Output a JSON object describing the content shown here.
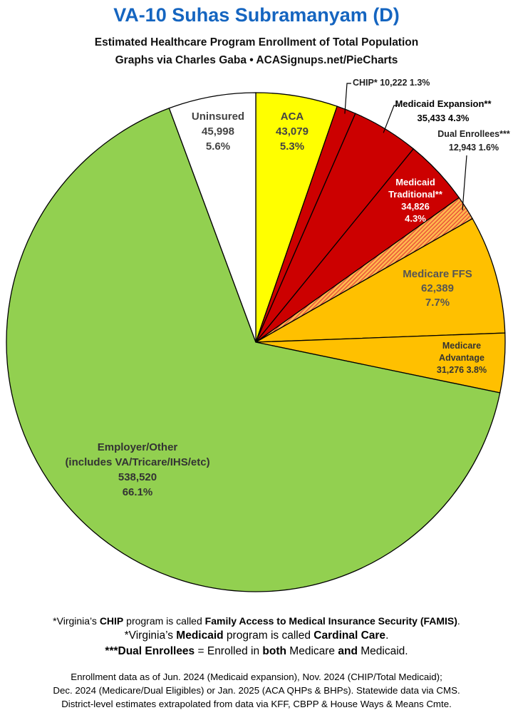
{
  "header": {
    "title": "VA-10 Suhas Subramanyam (D)",
    "subtitle": "Estimated Healthcare Program Enrollment of Total Population",
    "credit": "Graphs via Charles Gaba  •  ACASignups.net/PieCharts"
  },
  "chart_data": {
    "type": "pie",
    "slices": [
      {
        "label": "ACA",
        "value": 43079,
        "percent": "5.3%",
        "value_text": "43,079",
        "color": "#ffff00"
      },
      {
        "label": "CHIP*",
        "value": 10222,
        "percent": "1.3%",
        "value_text": "10,222",
        "color": "#cc0000"
      },
      {
        "label": "Medicaid Expansion**",
        "value": 35433,
        "percent": "4.3%",
        "value_text": "35,433",
        "color": "#cc0000"
      },
      {
        "label": "Medicaid Traditional**",
        "value": 34826,
        "percent": "4.3%",
        "value_text": "34,826",
        "color": "#cc0000"
      },
      {
        "label": "Dual Enrollees***",
        "value": 12943,
        "percent": "1.6%",
        "value_text": "12,943",
        "color": "#f57c00",
        "pattern": "hatched"
      },
      {
        "label": "Medicare FFS",
        "value": 62389,
        "percent": "7.7%",
        "value_text": "62,389",
        "color": "#ffc000"
      },
      {
        "label": "Medicare Advantage",
        "value": 31276,
        "percent": "3.8%",
        "value_text": "31,276",
        "color": "#ffc000"
      },
      {
        "label": "Employer/Other",
        "sublabel": "(includes VA/Tricare/IHS/etc)",
        "value": 538520,
        "percent": "66.1%",
        "value_text": "538,520",
        "color": "#92d050"
      },
      {
        "label": "Uninsured",
        "value": 45998,
        "percent": "5.6%",
        "value_text": "45,998",
        "color": "#ffffff"
      }
    ]
  },
  "notes": {
    "line1_a": "*Virginia’s ",
    "line1_b": "CHIP",
    "line1_c": " program is called ",
    "line1_d": "Family Access to Medical Insurance Security (FAMIS)",
    "line1_e": ".",
    "line2_a": "*Virginia’s ",
    "line2_b": "Medicaid",
    "line2_c": " program is called ",
    "line2_d": "Cardinal Care",
    "line2_e": ".",
    "line3_a": "***Dual Enrollees",
    "line3_b": " = Enrolled in ",
    "line3_c": "both",
    "line3_d": " Medicare ",
    "line3_e": "and",
    "line3_f": " Medicaid."
  },
  "sources": {
    "line1": "Enrollment data as of Jun. 2024 (Medicaid expansion), Nov. 2024 (CHIP/Total Medicaid);",
    "line2": "Dec. 2024 (Medicare/Dual Eligibles) or Jan. 2025 (ACA QHPs & BHPs). Statewide data via CMS.",
    "line3": "District-level estimates extrapolated from data via KFF, CBPP & House Ways & Means Cmte."
  }
}
